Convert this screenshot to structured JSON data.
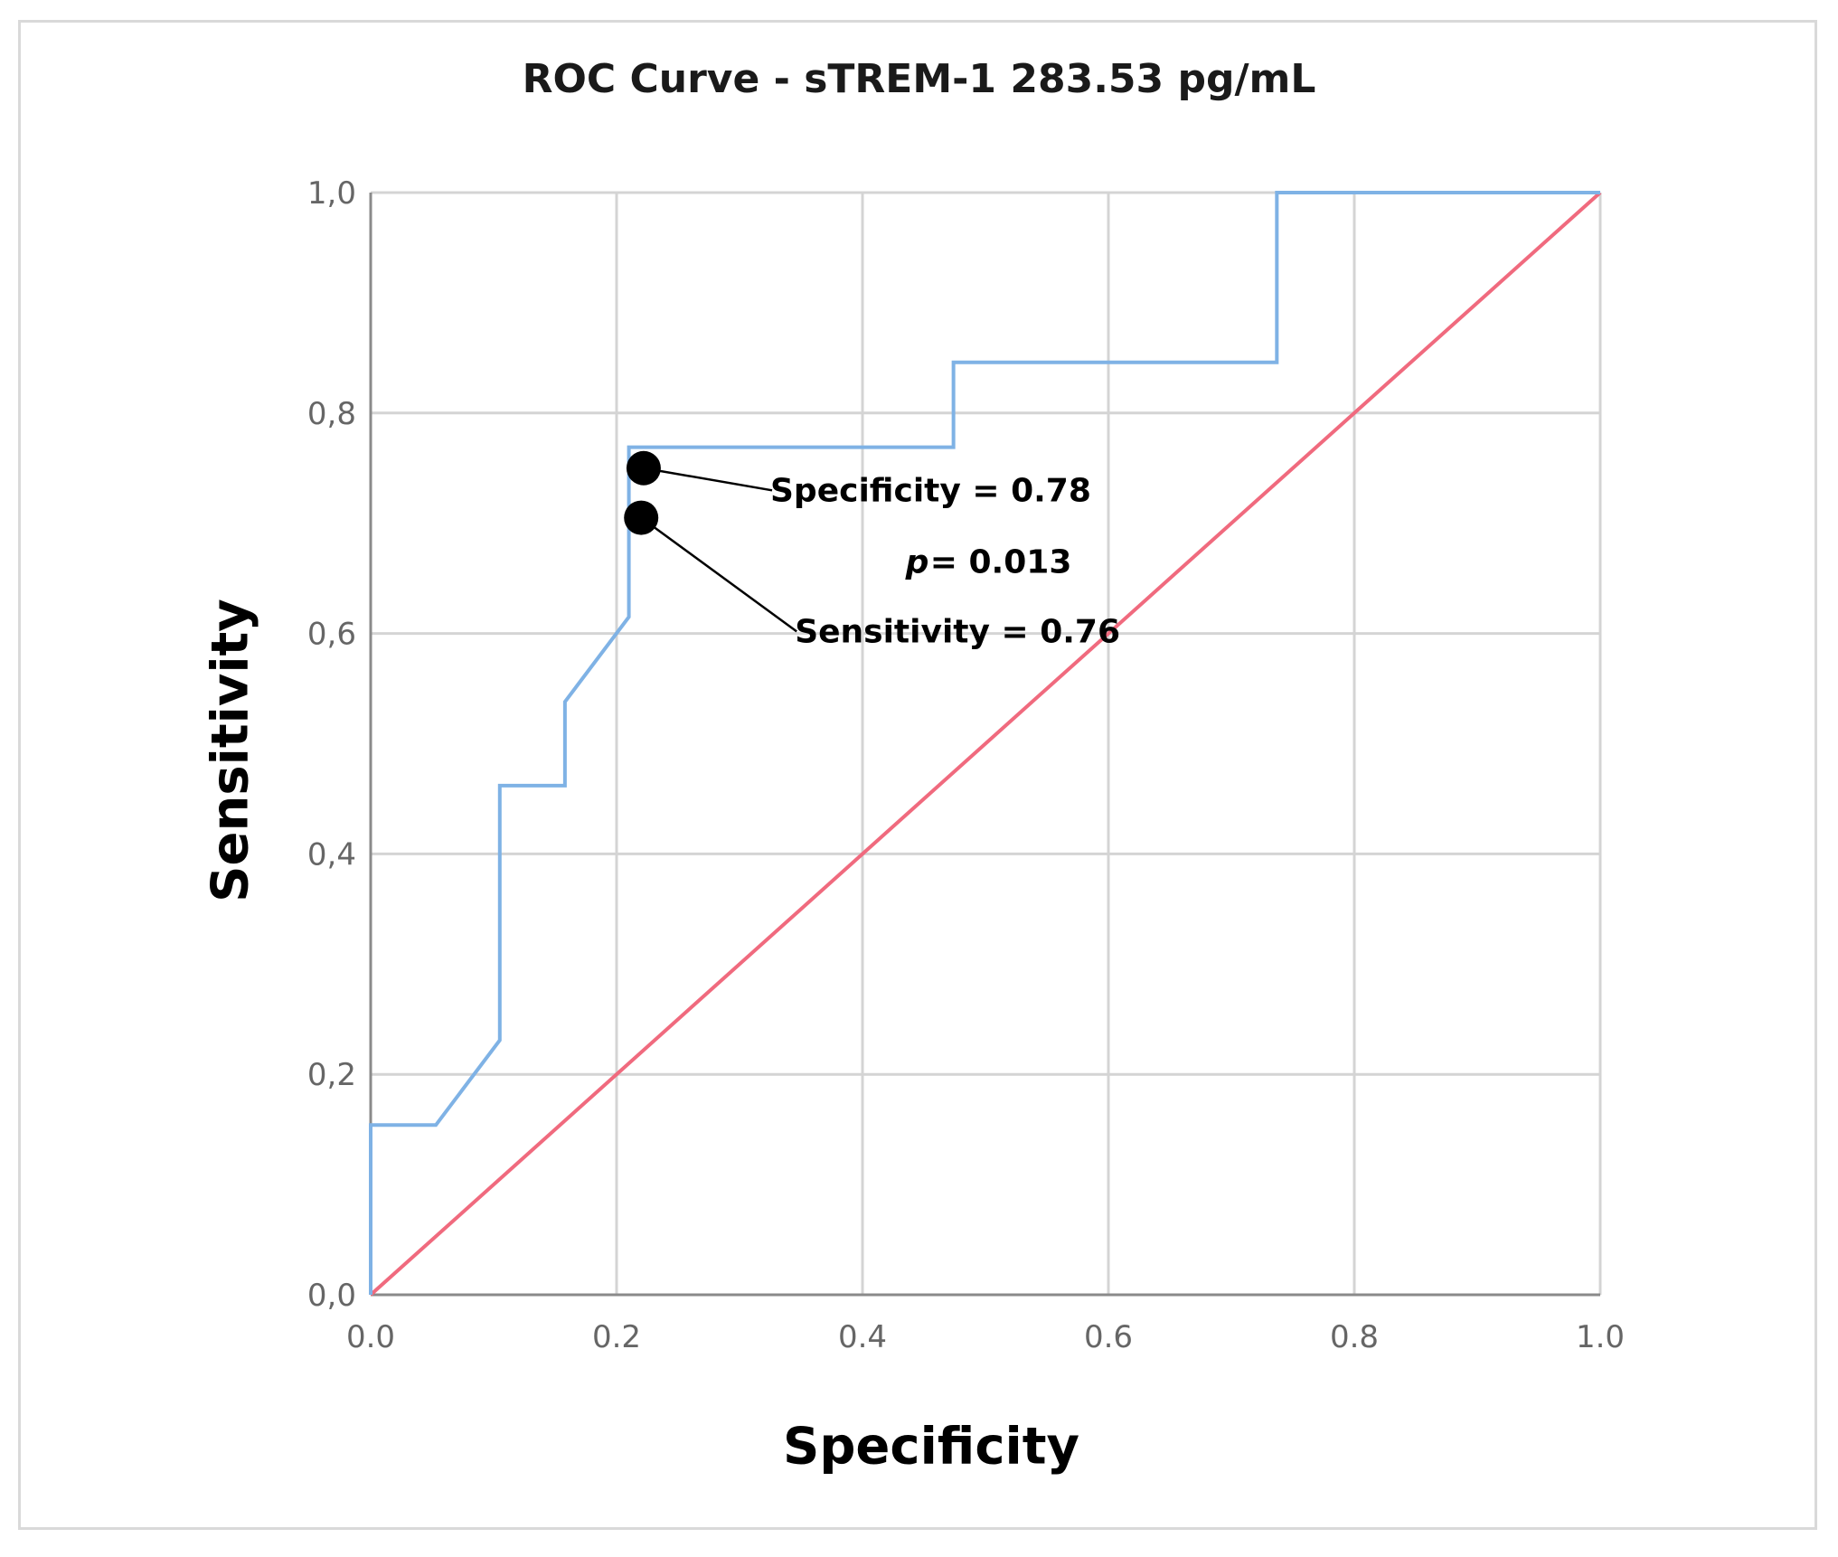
{
  "chart_data": {
    "type": "line",
    "title": "ROC Curve - sTREM-1 283.53 pg/mL",
    "xlabel": "Specificity",
    "ylabel": "Sensitivity",
    "xlim": [
      0,
      1
    ],
    "ylim": [
      0,
      1
    ],
    "x_ticks": [
      "0.0",
      "0.2",
      "0.4",
      "0.6",
      "0.8",
      "1.0"
    ],
    "y_ticks": [
      "0,0",
      "0,2",
      "0,4",
      "0,6",
      "0,8",
      "1,0"
    ],
    "grid": true,
    "series": [
      {
        "color": "#7fb2e5",
        "x": [
          0.0,
          0.0,
          0.053,
          0.105,
          0.105,
          0.158,
          0.158,
          0.21,
          0.21,
          0.21,
          0.474,
          0.474,
          0.737,
          0.737,
          1.0
        ],
        "y": [
          0.0,
          0.154,
          0.154,
          0.231,
          0.462,
          0.462,
          0.538,
          0.615,
          0.769,
          0.769,
          0.769,
          0.846,
          0.846,
          1.0,
          1.0
        ]
      },
      {
        "color": "#f06a7e",
        "x": [
          0.0,
          1.0
        ],
        "y": [
          0.0,
          1.0
        ]
      }
    ],
    "points": [
      {
        "x": 0.222,
        "y": 0.75
      },
      {
        "x": 0.22,
        "y": 0.705
      }
    ],
    "annotations": [
      {
        "text": "Specificity = 0.78",
        "x": 0.325,
        "y": 0.72
      },
      {
        "text": "p",
        "italic": true,
        "x": 0.435,
        "y": 0.655
      },
      {
        "text": " = 0.013",
        "x": 0.455,
        "y": 0.655
      },
      {
        "text": "Sensitivity = 0.76",
        "x": 0.345,
        "y": 0.592
      }
    ]
  }
}
